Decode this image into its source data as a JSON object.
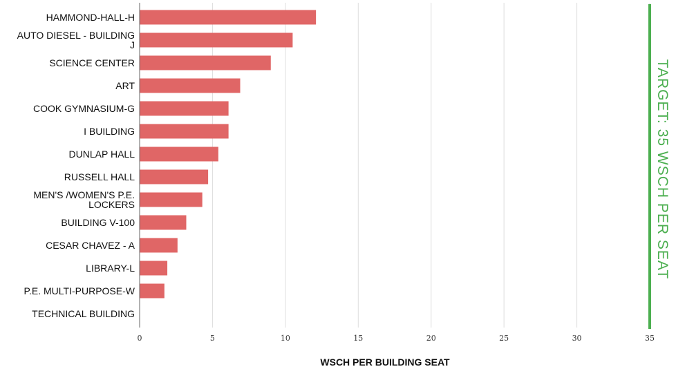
{
  "chart_data": {
    "type": "bar",
    "orientation": "horizontal",
    "categories": [
      "HAMMOND-HALL-H",
      "AUTO DIESEL - BUILDING J",
      "SCIENCE CENTER",
      "ART",
      "COOK GYMNASIUM-G",
      "I BUILDING",
      "DUNLAP HALL",
      "RUSSELL HALL",
      "MEN'S /WOMEN'S P.E. LOCKERS",
      "BUILDING V-100",
      "CESAR CHAVEZ - A",
      "LIBRARY-L",
      "P.E. MULTI-PURPOSE-W",
      "TECHNICAL BUILDING"
    ],
    "category_lines": [
      [
        "HAMMOND-HALL-H"
      ],
      [
        "AUTO DIESEL - BUILDING",
        "J"
      ],
      [
        "SCIENCE CENTER"
      ],
      [
        "ART"
      ],
      [
        "COOK GYMNASIUM-G"
      ],
      [
        "I BUILDING"
      ],
      [
        "DUNLAP HALL"
      ],
      [
        "RUSSELL HALL"
      ],
      [
        "MEN'S /WOMEN'S P.E.",
        "LOCKERS"
      ],
      [
        "BUILDING V-100"
      ],
      [
        "CESAR CHAVEZ - A"
      ],
      [
        "LIBRARY-L"
      ],
      [
        "P.E. MULTI-PURPOSE-W"
      ],
      [
        "TECHNICAL BUILDING"
      ]
    ],
    "values": [
      12.1,
      10.5,
      9.0,
      6.9,
      6.1,
      6.1,
      5.4,
      4.7,
      4.3,
      3.2,
      2.6,
      1.9,
      1.7,
      0
    ],
    "xlabel": "WSCH PER BUILDING SEAT",
    "ylabel": "",
    "xlim": [
      0,
      35
    ],
    "xticks": [
      0,
      5,
      10,
      15,
      20,
      25,
      30,
      35
    ],
    "grid": true,
    "bar_color": "#e06666",
    "target": {
      "value": 35,
      "label": "TARGET: 35 WSCH PER SEAT",
      "color": "#4caf50"
    }
  }
}
